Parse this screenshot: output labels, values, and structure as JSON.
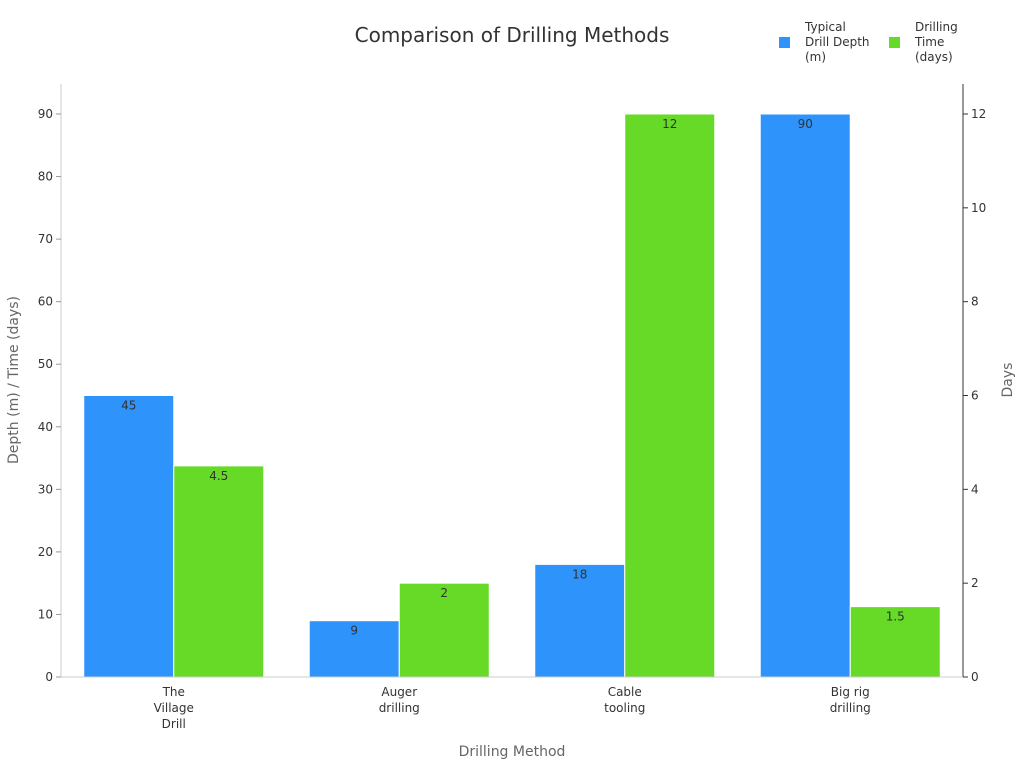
{
  "chart_data": {
    "type": "bar",
    "title": "Comparison of Drilling Methods",
    "xlabel": "Drilling Method",
    "ylabel": "Depth (m) / Time (days)",
    "ylabel_right": "Days",
    "categories": [
      [
        "The",
        "Village",
        "Drill"
      ],
      [
        "Auger",
        "drilling"
      ],
      [
        "Cable",
        "tooling"
      ],
      [
        "Big rig",
        "drilling"
      ]
    ],
    "series": [
      {
        "name": [
          "Typical",
          "Drill Depth",
          "(m)"
        ],
        "axis": "left",
        "color": "#2e93fa",
        "values": [
          45,
          9,
          18,
          90
        ],
        "labels": [
          "45",
          "9",
          "18",
          "90"
        ]
      },
      {
        "name": [
          "Drilling",
          "Time",
          "(days)"
        ],
        "axis": "right",
        "color": "#66da26",
        "values": [
          4.5,
          2,
          12,
          1.5
        ],
        "labels": [
          "4.5",
          "2",
          "12",
          "1.5"
        ]
      }
    ],
    "ylim": [
      0,
      90
    ],
    "y_ticks": [
      "0",
      "10",
      "20",
      "30",
      "40",
      "50",
      "60",
      "70",
      "80",
      "90"
    ],
    "ylim_right": [
      0,
      12
    ],
    "y_ticks_right": [
      "0",
      "2",
      "4",
      "6",
      "8",
      "10",
      "12"
    ],
    "legend_position": "top-right",
    "grid": false
  }
}
